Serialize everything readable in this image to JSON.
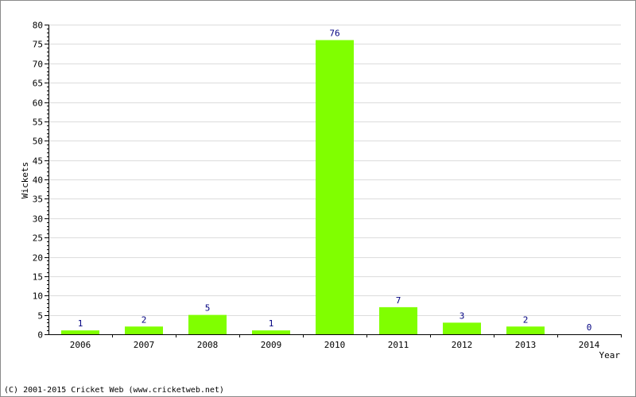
{
  "chart_data": {
    "type": "bar",
    "categories": [
      "2006",
      "2007",
      "2008",
      "2009",
      "2010",
      "2011",
      "2012",
      "2013",
      "2014"
    ],
    "values": [
      1,
      2,
      5,
      1,
      76,
      7,
      3,
      2,
      0
    ],
    "xlabel": "Year",
    "ylabel": "Wickets",
    "ylim": [
      0,
      80
    ],
    "yticks": [
      0,
      5,
      10,
      15,
      20,
      25,
      30,
      35,
      40,
      45,
      50,
      55,
      60,
      65,
      70,
      75,
      80
    ],
    "grid": true,
    "bar_color": "#80ff00",
    "data_label_color": "#000080"
  },
  "footer": {
    "copyright": "(C) 2001-2015 Cricket Web (www.cricketweb.net)"
  }
}
